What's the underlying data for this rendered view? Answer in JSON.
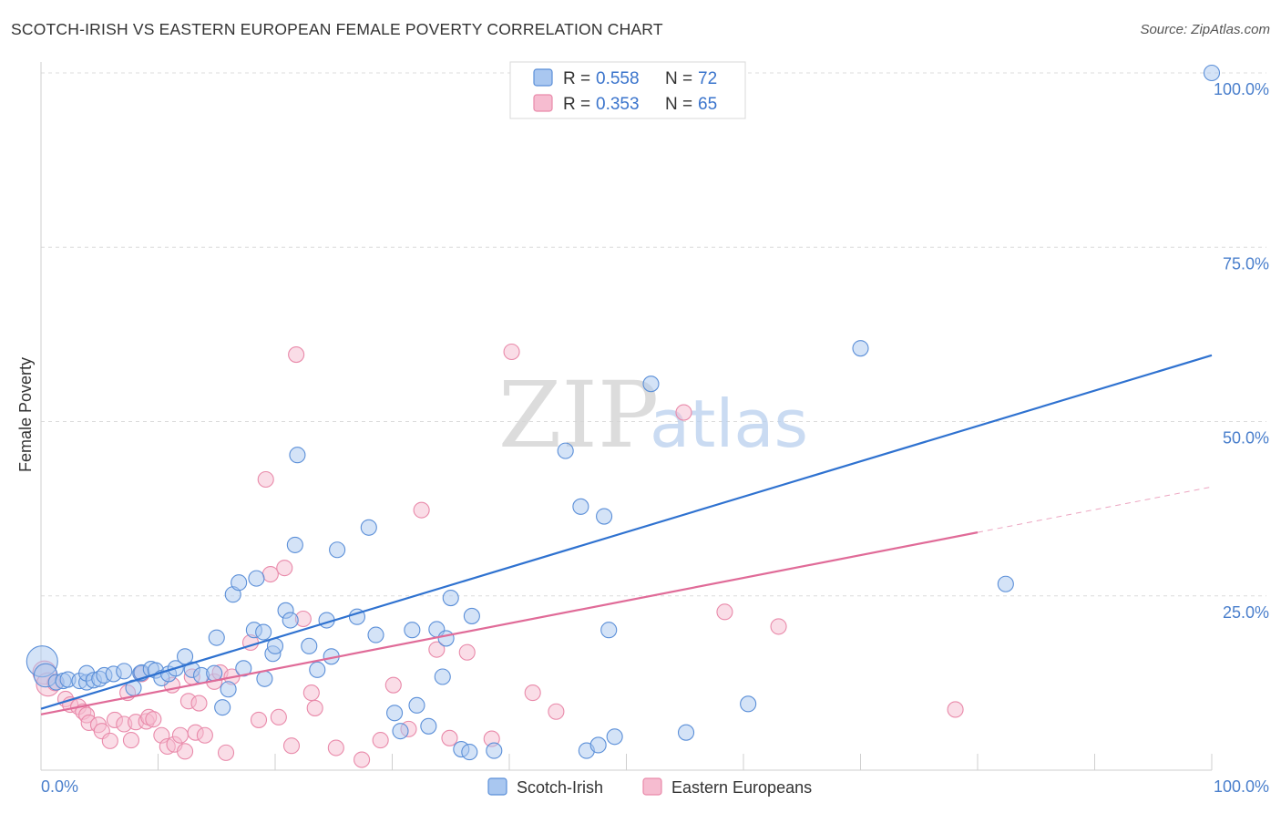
{
  "title": "SCOTCH-IRISH VS EASTERN EUROPEAN FEMALE POVERTY CORRELATION CHART",
  "source": "Source: ZipAtlas.com",
  "watermark": {
    "zip": "ZIP",
    "atlas": "atlas"
  },
  "colors": {
    "blue_fill": "#a9c7f0",
    "blue_stroke": "#5b8fd8",
    "blue_line": "#2f72d0",
    "pink_fill": "#f6bcd0",
    "pink_stroke": "#e98aaa",
    "pink_line": "#e06b98",
    "axis_text": "#4a7fcc",
    "grid": "#dcdcdc"
  },
  "legend": {
    "rows": [
      {
        "r_label": "R =",
        "r_value": "0.558",
        "n_label": "N =",
        "n_value": "72"
      },
      {
        "r_label": "R =",
        "r_value": "0.353",
        "n_label": "N =",
        "n_value": "65"
      }
    ]
  },
  "bottom_legend": [
    "Scotch-Irish",
    "Eastern Europeans"
  ],
  "chart_data": {
    "type": "scatter",
    "title": "SCOTCH-IRISH VS EASTERN EUROPEAN FEMALE POVERTY CORRELATION CHART",
    "xlabel": "",
    "ylabel": "Female Poverty",
    "xlim": [
      0,
      100
    ],
    "ylim": [
      0,
      100
    ],
    "x_tick_labels": [
      "0.0%",
      "100.0%"
    ],
    "y_tick_labels": [
      "25.0%",
      "50.0%",
      "75.0%",
      "100.0%"
    ],
    "y_ticks": [
      25,
      50,
      75,
      100
    ],
    "grid": true,
    "legend_position": "top-center",
    "series": [
      {
        "name": "Scotch-Irish",
        "r": 0.558,
        "n": 72,
        "trend": {
          "x": [
            0,
            100
          ],
          "y": [
            8.8,
            59.5
          ]
        },
        "points": [
          [
            0.1,
            15.6,
            2.0
          ],
          [
            0.4,
            13.6,
            1.5
          ],
          [
            1.3,
            12.6,
            1
          ],
          [
            1.9,
            12.8,
            1
          ],
          [
            2.3,
            13.0,
            1
          ],
          [
            3.3,
            12.8,
            1
          ],
          [
            3.9,
            12.6,
            1
          ],
          [
            3.9,
            13.9,
            1
          ],
          [
            4.5,
            12.9,
            1
          ],
          [
            5.0,
            13.1,
            1
          ],
          [
            5.4,
            13.6,
            1
          ],
          [
            6.2,
            13.8,
            1
          ],
          [
            7.1,
            14.2,
            1
          ],
          [
            7.9,
            11.8,
            1
          ],
          [
            8.5,
            13.9,
            1
          ],
          [
            8.6,
            14.0,
            1
          ],
          [
            9.4,
            14.5,
            1
          ],
          [
            9.8,
            14.3,
            1
          ],
          [
            10.3,
            13.2,
            1
          ],
          [
            10.9,
            13.8,
            1
          ],
          [
            11.5,
            14.6,
            1
          ],
          [
            12.3,
            16.3,
            1
          ],
          [
            12.9,
            14.4,
            1
          ],
          [
            13.7,
            13.6,
            1
          ],
          [
            14.8,
            13.9,
            1
          ],
          [
            15.0,
            19.0,
            1
          ],
          [
            15.5,
            9.0,
            1
          ],
          [
            16.0,
            11.6,
            1
          ],
          [
            16.4,
            25.2,
            1
          ],
          [
            16.9,
            26.9,
            1
          ],
          [
            17.3,
            14.6,
            1
          ],
          [
            18.2,
            20.1,
            1
          ],
          [
            18.4,
            27.5,
            1
          ],
          [
            19.0,
            19.8,
            1
          ],
          [
            19.1,
            13.1,
            1
          ],
          [
            19.8,
            16.7,
            1
          ],
          [
            20.0,
            17.8,
            1
          ],
          [
            20.9,
            22.9,
            1
          ],
          [
            21.3,
            21.5,
            1
          ],
          [
            21.7,
            32.3,
            1
          ],
          [
            21.9,
            45.2,
            1
          ],
          [
            22.9,
            17.8,
            1
          ],
          [
            23.6,
            14.4,
            1
          ],
          [
            24.4,
            21.5,
            1
          ],
          [
            24.8,
            16.3,
            1
          ],
          [
            25.3,
            31.6,
            1
          ],
          [
            27.0,
            22.0,
            1
          ],
          [
            28.0,
            34.8,
            1
          ],
          [
            28.6,
            19.4,
            1
          ],
          [
            30.2,
            8.2,
            1
          ],
          [
            30.7,
            5.6,
            1
          ],
          [
            31.7,
            20.1,
            1
          ],
          [
            32.1,
            9.3,
            1
          ],
          [
            33.1,
            6.3,
            1
          ],
          [
            33.8,
            20.2,
            1
          ],
          [
            34.3,
            13.4,
            1
          ],
          [
            34.6,
            18.9,
            1
          ],
          [
            35.0,
            24.7,
            1
          ],
          [
            35.9,
            3.0,
            1
          ],
          [
            36.6,
            2.6,
            1
          ],
          [
            36.8,
            22.1,
            1
          ],
          [
            38.7,
            2.8,
            1
          ],
          [
            44.8,
            45.8,
            1
          ],
          [
            46.1,
            37.8,
            1
          ],
          [
            46.6,
            2.8,
            1
          ],
          [
            47.6,
            3.6,
            1
          ],
          [
            48.1,
            36.4,
            1
          ],
          [
            48.5,
            20.1,
            1
          ],
          [
            49.0,
            4.8,
            1
          ],
          [
            52.1,
            55.4,
            1
          ],
          [
            55.1,
            5.4,
            1
          ],
          [
            60.4,
            9.5,
            1
          ],
          [
            70.0,
            60.5,
            1
          ],
          [
            82.4,
            26.7,
            1
          ],
          [
            100.0,
            100.0,
            1
          ]
        ]
      },
      {
        "name": "Eastern Europeans",
        "r": 0.353,
        "n": 65,
        "trend": {
          "x": [
            0,
            80
          ],
          "y": [
            8.0,
            34.1
          ]
        },
        "points": [
          [
            0.3,
            14.0,
            1.5
          ],
          [
            0.6,
            12.3,
            1.5
          ],
          [
            1.2,
            12.5,
            1
          ],
          [
            2.1,
            10.2,
            1
          ],
          [
            2.5,
            9.4,
            1
          ],
          [
            3.2,
            9.1,
            1
          ],
          [
            3.6,
            8.4,
            1
          ],
          [
            3.9,
            7.9,
            1
          ],
          [
            4.1,
            6.8,
            1
          ],
          [
            4.9,
            6.5,
            1
          ],
          [
            5.2,
            5.6,
            1
          ],
          [
            5.9,
            4.2,
            1
          ],
          [
            6.3,
            7.2,
            1
          ],
          [
            7.1,
            6.6,
            1
          ],
          [
            7.4,
            11.1,
            1
          ],
          [
            7.7,
            4.3,
            1
          ],
          [
            8.1,
            6.9,
            1
          ],
          [
            8.6,
            13.8,
            1
          ],
          [
            9.0,
            7.0,
            1
          ],
          [
            9.2,
            7.6,
            1
          ],
          [
            9.6,
            7.3,
            1
          ],
          [
            10.3,
            5.0,
            1
          ],
          [
            10.8,
            3.4,
            1
          ],
          [
            11.2,
            12.2,
            1
          ],
          [
            11.4,
            3.7,
            1
          ],
          [
            11.9,
            5.0,
            1
          ],
          [
            12.3,
            2.7,
            1
          ],
          [
            12.6,
            9.9,
            1
          ],
          [
            12.9,
            13.4,
            1
          ],
          [
            13.2,
            5.4,
            1
          ],
          [
            13.5,
            9.6,
            1
          ],
          [
            14.0,
            5.0,
            1
          ],
          [
            14.8,
            12.7,
            1
          ],
          [
            15.3,
            14.0,
            1
          ],
          [
            15.8,
            2.5,
            1
          ],
          [
            16.3,
            13.4,
            1
          ],
          [
            17.9,
            18.3,
            1
          ],
          [
            18.6,
            7.2,
            1
          ],
          [
            19.2,
            41.7,
            1
          ],
          [
            19.6,
            28.1,
            1
          ],
          [
            20.3,
            7.6,
            1
          ],
          [
            20.8,
            29.0,
            1
          ],
          [
            21.4,
            3.5,
            1
          ],
          [
            21.8,
            59.6,
            1
          ],
          [
            22.4,
            21.7,
            1
          ],
          [
            23.1,
            11.1,
            1
          ],
          [
            23.4,
            8.9,
            1
          ],
          [
            25.2,
            3.2,
            1
          ],
          [
            27.4,
            1.5,
            1
          ],
          [
            29.0,
            4.3,
            1
          ],
          [
            30.1,
            12.2,
            1
          ],
          [
            31.4,
            5.9,
            1
          ],
          [
            32.5,
            37.3,
            1
          ],
          [
            33.8,
            17.3,
            1
          ],
          [
            34.9,
            4.6,
            1
          ],
          [
            36.4,
            16.9,
            1
          ],
          [
            38.5,
            4.5,
            1
          ],
          [
            40.2,
            60.0,
            1
          ],
          [
            42.0,
            11.1,
            1
          ],
          [
            44.0,
            8.4,
            1
          ],
          [
            54.9,
            51.3,
            1
          ],
          [
            58.4,
            22.7,
            1
          ],
          [
            63.0,
            20.6,
            1
          ],
          [
            78.1,
            8.7,
            1
          ]
        ]
      }
    ]
  }
}
